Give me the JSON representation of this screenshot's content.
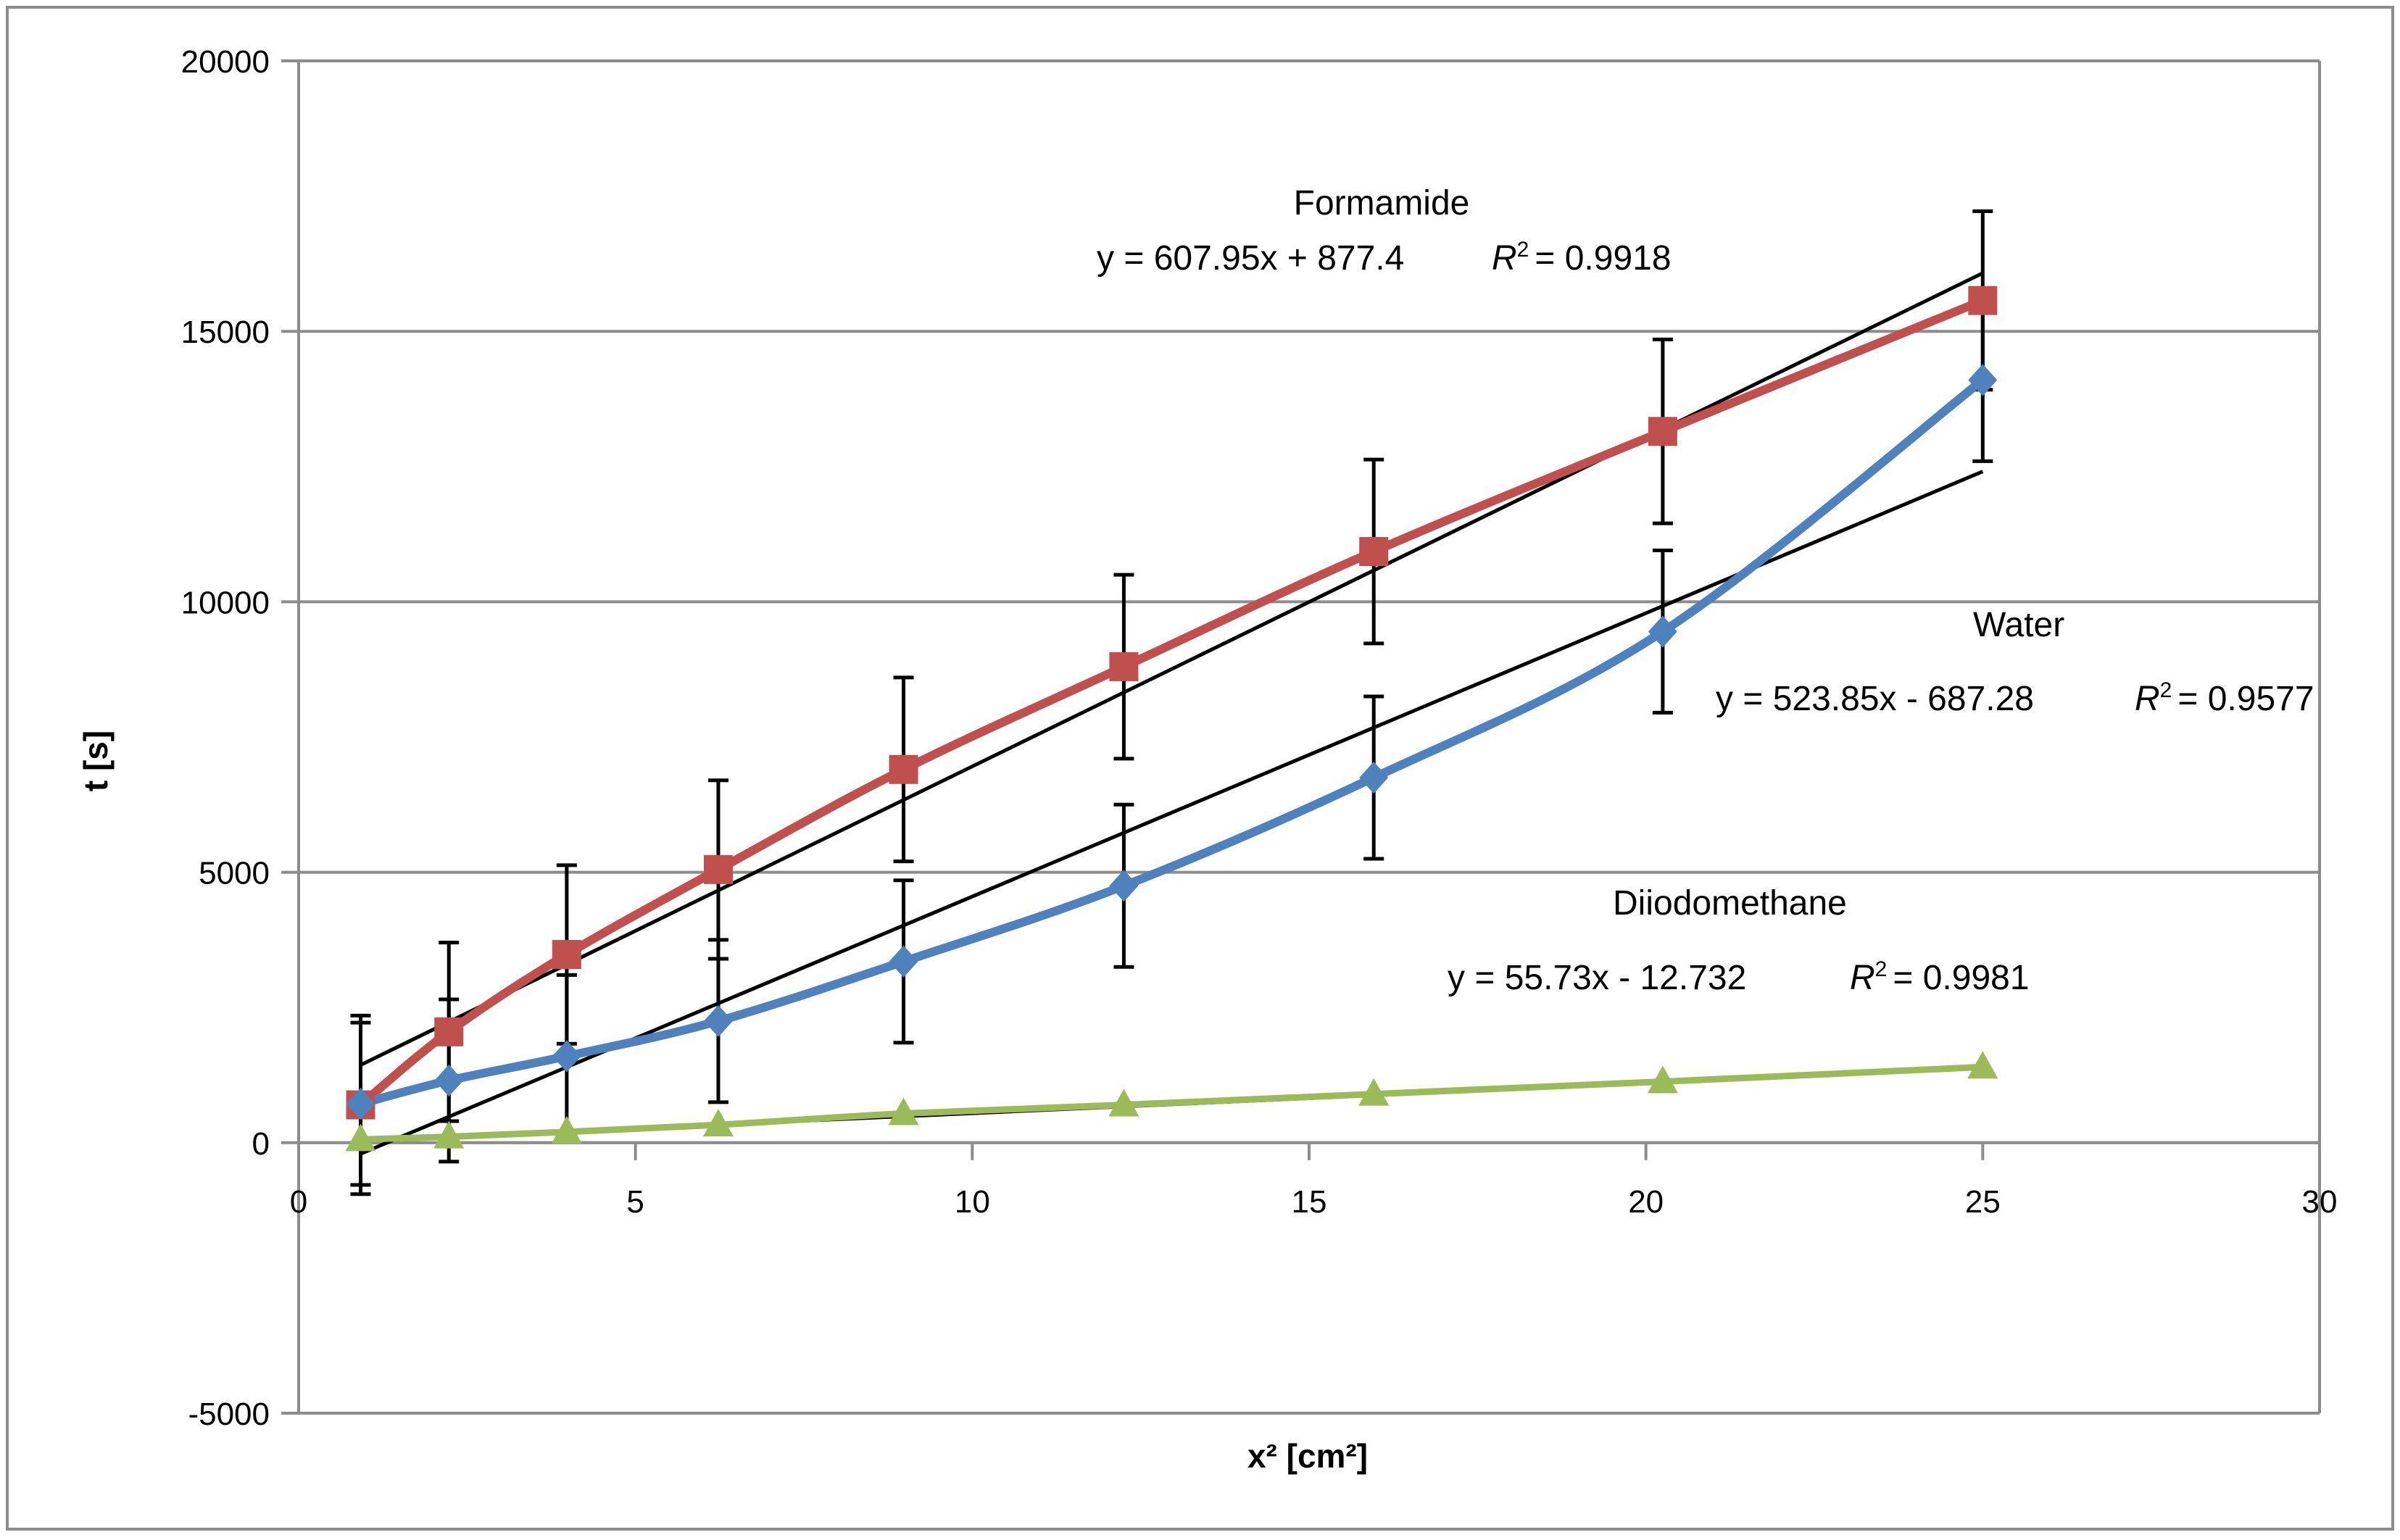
{
  "chart_data": {
    "type": "line",
    "title": "",
    "xlabel": "x² [cm²]",
    "ylabel": "t [s]",
    "xlim": [
      0,
      30
    ],
    "ylim": [
      -5000,
      20000
    ],
    "x_ticks": [
      0,
      5,
      10,
      15,
      20,
      25,
      30
    ],
    "y_ticks": [
      -5000,
      0,
      5000,
      10000,
      15000,
      20000
    ],
    "x_tick_labels": [
      "0",
      "5",
      "10",
      "15",
      "20",
      "25",
      "30"
    ],
    "y_tick_labels": [
      "-5000",
      "0",
      "5000",
      "10000",
      "15000",
      "20000"
    ],
    "grid": "horizontal",
    "x": [
      0.92,
      2.23,
      3.98,
      6.23,
      8.98,
      12.25,
      15.96,
      20.25,
      25.0
    ],
    "series": [
      {
        "name": "Formamide",
        "color": "#c0504d",
        "marker": "square",
        "values": [
          700,
          2050,
          3480,
          5050,
          6900,
          8800,
          10930,
          13150,
          15570
        ],
        "error": [
          1650,
          1650,
          1650,
          1650,
          1700,
          1700,
          1700,
          1700,
          1650
        ],
        "trendline": {
          "slope": 607.95,
          "intercept": 877.4,
          "equation": "y = 607.95x + 877.4",
          "r2_prefix": "R",
          "r2_value": "= 0.9918"
        },
        "label": "Formamide"
      },
      {
        "name": "Water",
        "color": "#4f81bd",
        "marker": "diamond",
        "values": [
          720,
          1150,
          1600,
          2250,
          3350,
          4750,
          6750,
          9450,
          14100
        ],
        "error": [
          1500,
          1500,
          1500,
          1500,
          1500,
          1500,
          1500,
          1500,
          1500
        ],
        "trendline": {
          "slope": 523.85,
          "intercept": -687.28,
          "equation": "y = 523.85x - 687.28",
          "r2_prefix": "R",
          "r2_value": "= 0.9577"
        },
        "label": "Water"
      },
      {
        "name": "Diiodomethane",
        "color": "#9bbb59",
        "marker": "triangle",
        "values": [
          60,
          110,
          200,
          330,
          540,
          700,
          900,
          1130,
          1400
        ],
        "error": [
          0,
          0,
          0,
          0,
          0,
          0,
          0,
          0,
          0
        ],
        "trendline": {
          "slope": 55.73,
          "intercept": -12.732,
          "equation": "y = 55.73x - 12.732",
          "r2_prefix": "R",
          "r2_value": "= 0.9981"
        },
        "label": "Diiodomethane"
      }
    ]
  }
}
